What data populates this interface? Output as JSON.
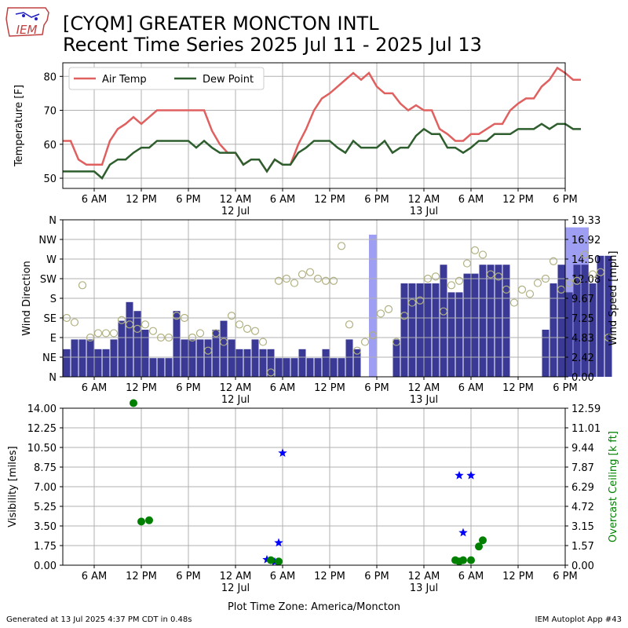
{
  "header": {
    "title_line1": "[CYQM] GREATER MONCTON INTL",
    "title_line2": "Recent Time Series 2025 Jul 11 - 2025 Jul 13",
    "logo_text": "IEM"
  },
  "footer": {
    "left": "Generated at 13 Jul 2025 4:37 PM CDT in 0.48s",
    "right": "IEM Autoplot App #43"
  },
  "colors": {
    "air_temp": "#e06060",
    "dew_point": "#2e5e2e",
    "wind_speed": "#3a3a96",
    "wind_gust": "#9e9ef2",
    "wind_dir": "#b0b080",
    "visibility": "#0000ff",
    "ceiling": "#008000"
  },
  "chart_data": [
    {
      "type": "line",
      "xlabel_time_zone": "Plot Time Zone: America/Moncton",
      "x_ticks": [
        "6 AM",
        "12 PM",
        "6 PM",
        "12 AM",
        "6 AM",
        "12 PM",
        "6 PM",
        "12 AM",
        "6 AM",
        "12 PM",
        "6 PM"
      ],
      "x_date_labels": [
        "12 Jul",
        "13 Jul"
      ],
      "ylabel": "Temperature [F]",
      "ylim": [
        47,
        84
      ],
      "y_ticks": [
        50,
        60,
        70,
        80
      ],
      "legend": [
        "Air Temp",
        "Dew Point"
      ],
      "legend_position": "upper-left",
      "grid": true,
      "x_hours": [
        2,
        3,
        4,
        5,
        6,
        7,
        8,
        9,
        10,
        11,
        12,
        13,
        14,
        15,
        16,
        17,
        18,
        19,
        20,
        21,
        22,
        23,
        24,
        25,
        26,
        27,
        28,
        29,
        30,
        31,
        32,
        33,
        34,
        35,
        36,
        37,
        38,
        39,
        40,
        41,
        42,
        43,
        44,
        45,
        46,
        47,
        48,
        49,
        50,
        51,
        52,
        53,
        54,
        55,
        56,
        57,
        58,
        59,
        60,
        61,
        62,
        63,
        64,
        65,
        66,
        67,
        68
      ],
      "series": [
        {
          "name": "Air Temp",
          "values": [
            61,
            61,
            55.5,
            54,
            54,
            54,
            61,
            64.5,
            66,
            68,
            66,
            68,
            70,
            70,
            70,
            70,
            70,
            70,
            70,
            64,
            60,
            57.5,
            57.5,
            54,
            55.5,
            55.5,
            52,
            55.5,
            54,
            54,
            60,
            64.5,
            70,
            73.5,
            75,
            77,
            79,
            81,
            79,
            81,
            77,
            75,
            75,
            72,
            70,
            71.5,
            70,
            70,
            64.5,
            63,
            61,
            61,
            63,
            63,
            64.5,
            66,
            66,
            70,
            72,
            73.5,
            73.5,
            77,
            79,
            82.5,
            81,
            79,
            79
          ]
        },
        {
          "name": "Dew Point",
          "values": [
            52,
            52,
            52,
            52,
            52,
            50,
            54,
            55.5,
            55.5,
            57.5,
            59,
            59,
            61,
            61,
            61,
            61,
            61,
            59,
            61,
            59,
            57.5,
            57.5,
            57.5,
            54,
            55.5,
            55.5,
            52,
            55.5,
            54,
            54,
            57.5,
            59,
            61,
            61,
            61,
            59,
            57.5,
            61,
            59,
            59,
            59,
            61,
            57.5,
            59,
            59,
            62.5,
            64.5,
            63,
            63,
            59,
            59,
            57.5,
            59,
            61,
            61,
            63,
            63,
            63,
            64.5,
            64.5,
            64.5,
            66,
            64.5,
            66,
            66,
            64.5,
            64.5
          ]
        }
      ]
    },
    {
      "type": "bar",
      "ylabel_left": "Wind Direction",
      "ylabel_right": "Wind Speed [mph]",
      "y_left_ticks": [
        "N",
        "NE",
        "E",
        "SE",
        "S",
        "SW",
        "W",
        "NW",
        "N"
      ],
      "y_right_ticks": [
        "0.00",
        "2.42",
        "4.83",
        "7.25",
        "9.67",
        "12.08",
        "14.50",
        "16.92",
        "19.33"
      ],
      "ylim_speed": [
        0,
        19.33
      ],
      "grid": true,
      "x_ticks": [
        "6 AM",
        "12 PM",
        "6 PM",
        "12 AM",
        "6 AM",
        "12 PM",
        "6 PM",
        "12 AM",
        "6 AM",
        "12 PM",
        "6 PM"
      ],
      "x_date_labels": [
        "12 Jul",
        "13 Jul"
      ],
      "wind_speed_series": {
        "name": "Wind Speed",
        "x_hours": [
          0,
          1,
          2,
          3,
          4,
          5,
          6,
          7,
          8,
          9,
          10,
          11,
          12,
          13,
          14,
          15,
          16,
          17,
          18,
          19,
          20,
          21,
          22,
          23,
          24,
          25,
          26,
          27,
          28,
          29,
          30,
          31,
          32,
          33,
          34,
          35,
          36,
          37,
          38,
          39,
          40,
          41,
          42,
          43,
          44,
          45,
          46,
          47,
          48,
          49,
          50,
          51,
          52,
          53,
          54,
          55,
          56,
          57,
          58,
          59,
          60,
          61,
          62,
          63,
          64,
          65,
          66,
          67,
          68,
          69
        ],
        "values": [
          3.4,
          4.6,
          4.6,
          4.6,
          3.4,
          3.4,
          4.6,
          6.9,
          9.2,
          8.1,
          5.8,
          2.3,
          2.3,
          2.3,
          8.1,
          4.6,
          4.6,
          4.6,
          4.6,
          5.8,
          6.9,
          4.6,
          3.4,
          3.4,
          4.6,
          3.4,
          3.4,
          2.3,
          2.3,
          2.3,
          3.4,
          2.3,
          2.3,
          3.4,
          2.3,
          2.3,
          4.6,
          3.4,
          0,
          0,
          0,
          0,
          4.6,
          11.5,
          11.5,
          11.5,
          11.5,
          11.5,
          13.8,
          10.4,
          10.4,
          12.7,
          12.7,
          13.8,
          13.8,
          13.8,
          13.8,
          0,
          0,
          0,
          0,
          5.8,
          11.5,
          13.8,
          10.4,
          13.8,
          13.8,
          11.5,
          14.9,
          14.9
        ]
      },
      "wind_gust_series": {
        "name": "Wind Gust",
        "x_hours": [
          39,
          64,
          65,
          66
        ],
        "values": [
          17.5,
          18.4,
          18.4,
          18.4
        ]
      },
      "wind_direction_series": {
        "name": "Wind Direction",
        "x_hours": [
          0,
          1,
          2,
          3,
          4,
          5,
          6,
          7,
          8,
          9,
          10,
          11,
          12,
          13,
          14,
          15,
          16,
          17,
          18,
          19,
          20,
          21,
          22,
          23,
          24,
          25,
          26,
          27,
          28,
          29,
          30,
          31,
          32,
          33,
          34,
          35,
          36,
          37,
          38,
          39,
          40,
          41,
          42,
          43,
          44,
          45,
          46,
          47,
          48,
          49,
          50,
          51,
          52,
          53,
          54,
          55,
          56,
          57,
          58,
          59,
          60,
          61,
          62,
          63,
          64,
          65,
          66,
          67,
          68,
          69
        ],
        "values": [
          135,
          125,
          210,
          90,
          100,
          100,
          100,
          130,
          120,
          110,
          120,
          105,
          90,
          90,
          140,
          135,
          90,
          100,
          60,
          100,
          80,
          140,
          120,
          110,
          105,
          80,
          10,
          220,
          225,
          215,
          235,
          240,
          225,
          220,
          220,
          300,
          120,
          60,
          80,
          95,
          145,
          155,
          80,
          140,
          170,
          175,
          225,
          230,
          150,
          210,
          220,
          260,
          290,
          280,
          235,
          230,
          200,
          170,
          200,
          190,
          215,
          225,
          265,
          200,
          215,
          220,
          280,
          235,
          240,
          90
        ]
      }
    },
    {
      "type": "scatter",
      "ylabel_left": "Visibility [miles]",
      "ylabel_right": "Overcast Ceiling [k ft]",
      "y_left_ticks": [
        "0.00",
        "1.75",
        "3.50",
        "5.25",
        "7.00",
        "8.75",
        "10.50",
        "12.25",
        "14.00"
      ],
      "y_right_ticks": [
        "0.00",
        "1.57",
        "3.15",
        "4.72",
        "6.29",
        "7.87",
        "9.44",
        "11.01",
        "12.59"
      ],
      "ylim_visibility": [
        0,
        14
      ],
      "ylim_ceiling": [
        0,
        12.59
      ],
      "grid": true,
      "xlabel": "Plot Time Zone: America/Moncton",
      "x_ticks": [
        "6 AM",
        "12 PM",
        "6 PM",
        "12 AM",
        "6 AM",
        "12 PM",
        "6 PM",
        "12 AM",
        "6 AM",
        "12 PM",
        "6 PM"
      ],
      "x_date_labels": [
        "12 Jul",
        "13 Jul"
      ],
      "series": [
        {
          "name": "Visibility",
          "marker": "star",
          "points": [
            [
              28,
              0.5
            ],
            [
              29,
              0.3
            ],
            [
              29.5,
              2.0
            ],
            [
              30,
              10.0
            ],
            [
              52.5,
              8.0
            ],
            [
              53,
              2.9
            ],
            [
              54,
              8.0
            ]
          ]
        },
        {
          "name": "Overcast Ceiling",
          "marker": "circle",
          "points": [
            [
              11,
              13.0
            ],
            [
              12,
              3.5
            ],
            [
              13,
              3.6
            ],
            [
              28.5,
              0.4
            ],
            [
              29.5,
              0.3
            ],
            [
              52,
              0.4
            ],
            [
              52.5,
              0.3
            ],
            [
              53,
              0.4
            ],
            [
              54,
              0.4
            ],
            [
              55,
              1.5
            ],
            [
              55.5,
              2.0
            ]
          ]
        }
      ]
    }
  ]
}
